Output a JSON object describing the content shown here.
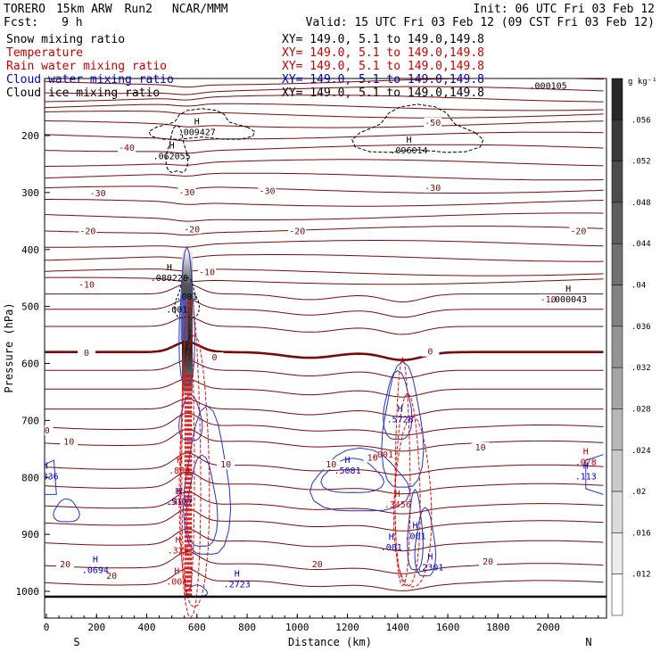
{
  "header": {
    "model": "TORERO",
    "resolution": "15km ARW",
    "run": "Run2",
    "org": "NCAR/MMM",
    "init": "Init: 06 UTC Fri 03 Feb 12",
    "fcst_label": "Fcst:",
    "fcst_value": "9 h",
    "valid": "Valid: 15 UTC Fri 03 Feb 12 (09 CST Fri 03 Feb 12)"
  },
  "fields": [
    {
      "name": "Snow mixing ratio",
      "xy": "XY= 149.0,  5.1 to 149.0,149.8",
      "color": "#000000"
    },
    {
      "name": "Temperature",
      "xy": "XY= 149.0,  5.1 to 149.0,149.8",
      "color": "#cc0000"
    },
    {
      "name": "Rain water mixing ratio",
      "xy": "XY= 149.0,  5.1 to 149.0,149.8",
      "color": "#cc0000"
    },
    {
      "name": "Cloud water mixing ratio",
      "xy": "XY= 149.0,  5.1 to 149.0,149.8",
      "color": "#0000cc"
    },
    {
      "name": "Cloud ice mixing ratio",
      "xy": "XY= 149.0,  5.1 to 149.0,149.8",
      "color": "#000000"
    }
  ],
  "chart_data": {
    "type": "cross-section",
    "xlabel": "Distance (km)",
    "ylabel": "Pressure (hPa)",
    "xlim": [
      0,
      2200
    ],
    "ylim": [
      1050,
      100
    ],
    "x_ticks": [
      "0",
      "200",
      "400",
      "600",
      "800",
      "1000",
      "1200",
      "1400",
      "1600",
      "1800",
      "2000"
    ],
    "x_tick_values": [
      0,
      200,
      400,
      600,
      800,
      1000,
      1200,
      1400,
      1600,
      1800,
      2000
    ],
    "y_ticks": [
      "200",
      "300",
      "400",
      "500",
      "600",
      "700",
      "800",
      "900",
      "1000"
    ],
    "y_tick_values": [
      200,
      300,
      400,
      500,
      600,
      700,
      800,
      900,
      1000
    ],
    "left_end": "S",
    "right_end": "N",
    "colorbar": {
      "unit": "g kg⁻¹",
      "ticks": [
        ".056",
        ".052",
        ".048",
        ".044",
        ".04",
        ".036",
        ".032",
        ".028",
        ".024",
        ".02",
        ".016",
        ".012"
      ]
    },
    "temperature_contours": [
      {
        "value": -50,
        "pressure": 180
      },
      {
        "value": -40,
        "pressure": 222
      },
      {
        "value": -30,
        "pressure": 295
      },
      {
        "value": -20,
        "pressure": 365
      },
      {
        "value": -10,
        "pressure": 455
      },
      {
        "value": 0,
        "pressure": 580
      },
      {
        "value": 10,
        "pressure": 740
      },
      {
        "value": 20,
        "pressure": 955
      }
    ],
    "temperature_labels": [
      {
        "text": "-50",
        "x": 1540,
        "p": 178
      },
      {
        "text": "-40",
        "x": 320,
        "p": 222
      },
      {
        "text": "-30",
        "x": 205,
        "p": 302
      },
      {
        "text": "-30",
        "x": 560,
        "p": 300
      },
      {
        "text": "-30",
        "x": 880,
        "p": 298
      },
      {
        "text": "-30",
        "x": 1540,
        "p": 292
      },
      {
        "text": "-20",
        "x": 165,
        "p": 368
      },
      {
        "text": "-20",
        "x": 580,
        "p": 365
      },
      {
        "text": "-20",
        "x": 1000,
        "p": 368
      },
      {
        "text": "-20",
        "x": 2120,
        "p": 368
      },
      {
        "text": "-10",
        "x": 160,
        "p": 462
      },
      {
        "text": "-10",
        "x": 640,
        "p": 440
      },
      {
        "text": "-10",
        "x": 2000,
        "p": 488
      },
      {
        "text": "0",
        "x": 160,
        "p": 582
      },
      {
        "text": "0",
        "x": 670,
        "p": 590
      },
      {
        "text": "0",
        "x": 1530,
        "p": 580
      },
      {
        "text": "10",
        "x": -8,
        "p": 718
      },
      {
        "text": "10",
        "x": 90,
        "p": 738
      },
      {
        "text": "10",
        "x": 715,
        "p": 778
      },
      {
        "text": "10",
        "x": 1135,
        "p": 778
      },
      {
        "text": "10",
        "x": 1300,
        "p": 766
      },
      {
        "text": "10",
        "x": 1730,
        "p": 748
      },
      {
        "text": "20",
        "x": 75,
        "p": 953
      },
      {
        "text": "20",
        "x": 260,
        "p": 973
      },
      {
        "text": "20",
        "x": 1080,
        "p": 953
      },
      {
        "text": "20",
        "x": 1760,
        "p": 948
      }
    ],
    "max_labels": [
      {
        "letter": "H",
        "value": ".009427",
        "x": 600,
        "p": 196,
        "color": "#000000"
      },
      {
        "letter": "H",
        "value": ".062055",
        "x": 500,
        "p": 238,
        "color": "#000000"
      },
      {
        "letter": "H",
        "value": ".096014",
        "x": 1445,
        "p": 228,
        "color": "#000000"
      },
      {
        "letter": "H",
        "value": ".080228",
        "x": 490,
        "p": 452,
        "color": "#000000"
      },
      {
        "letter": "H",
        "value": ".000043",
        "x": 2080,
        "p": 490,
        "color": "#000000"
      },
      {
        "letter": "",
        "value": ".001",
        "x": 560,
        "p": 485,
        "color": "#000000"
      },
      {
        "letter": "",
        "value": ".001",
        "x": 520,
        "p": 508,
        "color": "#000000"
      },
      {
        "letter": "",
        "value": ".000105",
        "x": 2000,
        "p": 115,
        "color": "#000000"
      },
      {
        "letter": "H",
        "value": ".5728",
        "x": 1410,
        "p": 700,
        "color": "#0000cc"
      },
      {
        "letter": "H",
        "value": ".5081",
        "x": 1200,
        "p": 790,
        "color": "#0000cc"
      },
      {
        "letter": "H",
        "value": ".5177",
        "x": 530,
        "p": 845,
        "color": "#0000cc"
      },
      {
        "letter": "H",
        "value": ".2723",
        "x": 760,
        "p": 990,
        "color": "#0000cc"
      },
      {
        "letter": "H",
        "value": ".2301",
        "x": 1530,
        "p": 960,
        "color": "#0000cc"
      },
      {
        "letter": "H",
        "value": ".0694",
        "x": 195,
        "p": 965,
        "color": "#0000cc"
      },
      {
        "letter": "H",
        "value": ".3836",
        "x": -5,
        "p": 800,
        "color": "#0000cc"
      },
      {
        "letter": "H",
        "value": ".113",
        "x": 2150,
        "p": 800,
        "color": "#0000cc"
      },
      {
        "letter": "H",
        "value": ".883",
        "x": 530,
        "p": 790,
        "color": "#cc0000"
      },
      {
        "letter": "H",
        "value": ".401",
        "x": 525,
        "p": 845,
        "color": "#cc0000"
      },
      {
        "letter": "H",
        "value": ".325",
        "x": 525,
        "p": 930,
        "color": "#cc0000"
      },
      {
        "letter": "H",
        "value": ".3456",
        "x": 1400,
        "p": 850,
        "color": "#cc0000"
      },
      {
        "letter": "H",
        "value": ".001",
        "x": 1470,
        "p": 905,
        "color": "#0000cc"
      },
      {
        "letter": "H",
        "value": ".001",
        "x": 1375,
        "p": 925,
        "color": "#0000cc"
      },
      {
        "letter": "H",
        "value": ".001",
        "x": 520,
        "p": 985,
        "color": "#cc0000"
      },
      {
        "letter": "H",
        "value": ".078",
        "x": 2150,
        "p": 775,
        "color": "#cc0000"
      },
      {
        "letter": "",
        "value": ".001",
        "x": 1340,
        "p": 762,
        "color": "#cc0000"
      }
    ]
  }
}
